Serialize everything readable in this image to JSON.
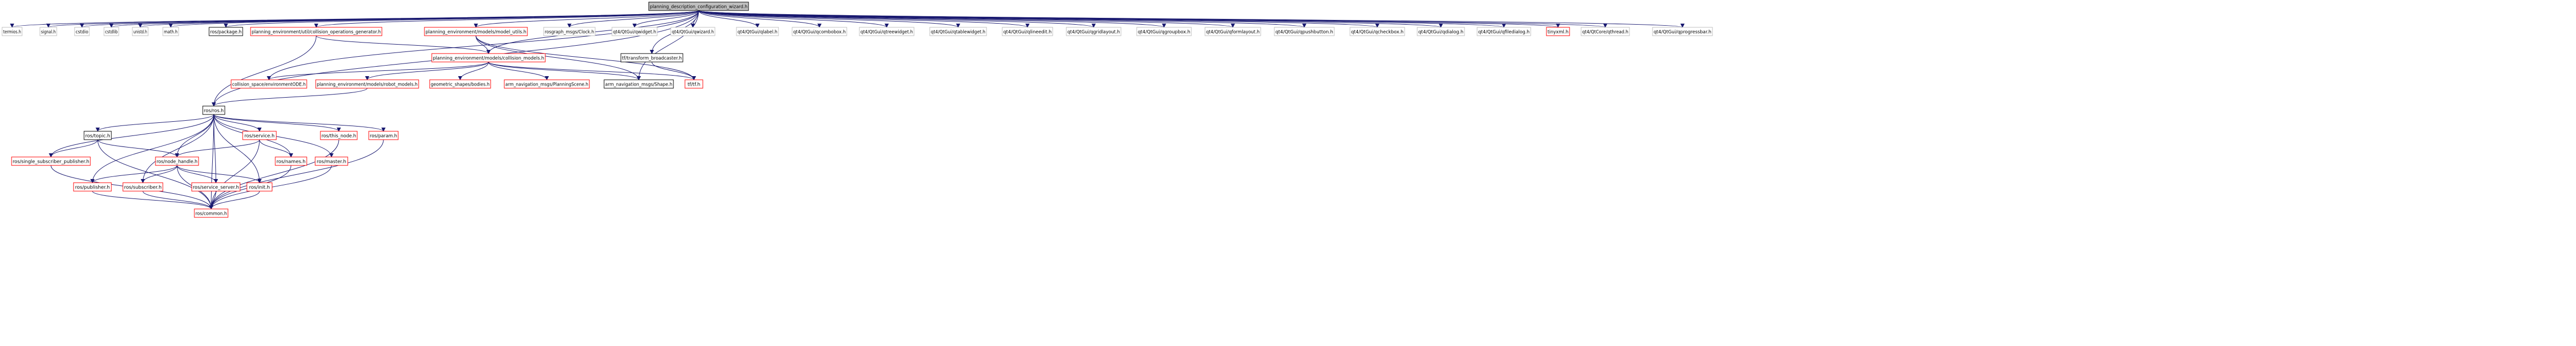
{
  "colors": {
    "background": "#ffffff",
    "root_fill": "#bfbfbf",
    "root_stroke": "#000000",
    "normal_stroke": "#000000",
    "missing_stroke": "#ff0000",
    "external_stroke": "#bfbfbf",
    "edge": "#191970"
  },
  "nodes": [
    {
      "id": "root",
      "label": "planning_description_configuration_wizard.h",
      "kind": "root"
    },
    {
      "id": "termios",
      "label": "termios.h",
      "kind": "external"
    },
    {
      "id": "signal",
      "label": "signal.h",
      "kind": "external"
    },
    {
      "id": "cstdio",
      "label": "cstdio",
      "kind": "external"
    },
    {
      "id": "cstdlib",
      "label": "cstdlib",
      "kind": "external"
    },
    {
      "id": "unistd",
      "label": "unistd.h",
      "kind": "external"
    },
    {
      "id": "math",
      "label": "math.h",
      "kind": "external"
    },
    {
      "id": "ros_package",
      "label": "ros/package.h",
      "kind": "normal"
    },
    {
      "id": "collision_ops",
      "label": "planning_environment/util/collision_operations_generator.h",
      "kind": "missing"
    },
    {
      "id": "model_utils",
      "label": "planning_environment/models/model_utils.h",
      "kind": "missing"
    },
    {
      "id": "clock",
      "label": "rosgraph_msgs/Clock.h",
      "kind": "external"
    },
    {
      "id": "qwidget",
      "label": "qt4/QtGui/qwidget.h",
      "kind": "external"
    },
    {
      "id": "qwizard",
      "label": "qt4/QtGui/qwizard.h",
      "kind": "external"
    },
    {
      "id": "qlabel",
      "label": "qt4/QtGui/qlabel.h",
      "kind": "external"
    },
    {
      "id": "qcombobox",
      "label": "qt4/QtGui/qcombobox.h",
      "kind": "external"
    },
    {
      "id": "qtreewidget",
      "label": "qt4/QtGui/qtreewidget.h",
      "kind": "external"
    },
    {
      "id": "qtablewidget",
      "label": "qt4/QtGui/qtablewidget.h",
      "kind": "external"
    },
    {
      "id": "qlineedit",
      "label": "qt4/QtGui/qlineedit.h",
      "kind": "external"
    },
    {
      "id": "qgridlayout",
      "label": "qt4/QtGui/qgridlayout.h",
      "kind": "external"
    },
    {
      "id": "qgroupbox",
      "label": "qt4/QtGui/qgroupbox.h",
      "kind": "external"
    },
    {
      "id": "qformlayout",
      "label": "qt4/QtGui/qformlayout.h",
      "kind": "external"
    },
    {
      "id": "qpushbutton",
      "label": "qt4/QtGui/qpushbutton.h",
      "kind": "external"
    },
    {
      "id": "qcheckbox",
      "label": "qt4/QtGui/qcheckbox.h",
      "kind": "external"
    },
    {
      "id": "qdialog",
      "label": "qt4/QtGui/qdialog.h",
      "kind": "external"
    },
    {
      "id": "qfiledialog",
      "label": "qt4/QtGui/qfiledialog.h",
      "kind": "external"
    },
    {
      "id": "tinyxml",
      "label": "tinyxml.h",
      "kind": "missing"
    },
    {
      "id": "qthread",
      "label": "qt4/QtCore/qthread.h",
      "kind": "external"
    },
    {
      "id": "qprogressbar",
      "label": "qt4/QtGui/qprogressbar.h",
      "kind": "external"
    },
    {
      "id": "collision_models",
      "label": "planning_environment/models/collision_models.h",
      "kind": "missing"
    },
    {
      "id": "tf_broadcaster",
      "label": "tf/transform_broadcaster.h",
      "kind": "normal"
    },
    {
      "id": "collision_space",
      "label": "collision_space/environmentODE.h",
      "kind": "missing"
    },
    {
      "id": "robot_models",
      "label": "planning_environment/models/robot_models.h",
      "kind": "missing"
    },
    {
      "id": "bodies",
      "label": "geometric_shapes/bodies.h",
      "kind": "missing"
    },
    {
      "id": "planning_scene",
      "label": "arm_navigation_msgs/PlanningScene.h",
      "kind": "missing"
    },
    {
      "id": "shape",
      "label": "arm_navigation_msgs/Shape.h",
      "kind": "normal"
    },
    {
      "id": "tftf",
      "label": "tf/tf.h",
      "kind": "missing"
    },
    {
      "id": "ros",
      "label": "ros/ros.h",
      "kind": "normal"
    },
    {
      "id": "topic",
      "label": "ros/topic.h",
      "kind": "normal"
    },
    {
      "id": "service",
      "label": "ros/service.h",
      "kind": "missing"
    },
    {
      "id": "this_node",
      "label": "ros/this_node.h",
      "kind": "missing"
    },
    {
      "id": "param",
      "label": "ros/param.h",
      "kind": "missing"
    },
    {
      "id": "single_sub",
      "label": "ros/single_subscriber_publisher.h",
      "kind": "missing"
    },
    {
      "id": "node_handle",
      "label": "ros/node_handle.h",
      "kind": "missing"
    },
    {
      "id": "names",
      "label": "ros/names.h",
      "kind": "missing"
    },
    {
      "id": "master",
      "label": "ros/master.h",
      "kind": "missing"
    },
    {
      "id": "publisher",
      "label": "ros/publisher.h",
      "kind": "missing"
    },
    {
      "id": "subscriber",
      "label": "ros/subscriber.h",
      "kind": "missing"
    },
    {
      "id": "service_server",
      "label": "ros/service_server.h",
      "kind": "missing"
    },
    {
      "id": "init",
      "label": "ros/init.h",
      "kind": "missing"
    },
    {
      "id": "common",
      "label": "ros/common.h",
      "kind": "missing"
    }
  ],
  "edges": [
    [
      "root",
      "termios"
    ],
    [
      "root",
      "signal"
    ],
    [
      "root",
      "cstdio"
    ],
    [
      "root",
      "cstdlib"
    ],
    [
      "root",
      "unistd"
    ],
    [
      "root",
      "math"
    ],
    [
      "root",
      "ros_package"
    ],
    [
      "root",
      "collision_ops"
    ],
    [
      "root",
      "model_utils"
    ],
    [
      "root",
      "clock"
    ],
    [
      "root",
      "qwidget"
    ],
    [
      "root",
      "qwizard"
    ],
    [
      "root",
      "qlabel"
    ],
    [
      "root",
      "qcombobox"
    ],
    [
      "root",
      "qtreewidget"
    ],
    [
      "root",
      "qtablewidget"
    ],
    [
      "root",
      "qlineedit"
    ],
    [
      "root",
      "qgridlayout"
    ],
    [
      "root",
      "qgroupbox"
    ],
    [
      "root",
      "qformlayout"
    ],
    [
      "root",
      "qpushbutton"
    ],
    [
      "root",
      "qcheckbox"
    ],
    [
      "root",
      "qdialog"
    ],
    [
      "root",
      "qfiledialog"
    ],
    [
      "root",
      "tinyxml"
    ],
    [
      "root",
      "qthread"
    ],
    [
      "root",
      "qprogressbar"
    ],
    [
      "root",
      "tf_broadcaster"
    ],
    [
      "root",
      "ros"
    ],
    [
      "root",
      "collision_space"
    ],
    [
      "root",
      "shape"
    ],
    [
      "root",
      "collision_models"
    ],
    [
      "collision_ops",
      "collision_models"
    ],
    [
      "collision_ops",
      "ros"
    ],
    [
      "model_utils",
      "collision_models"
    ],
    [
      "model_utils",
      "shape"
    ],
    [
      "model_utils",
      "tftf"
    ],
    [
      "collision_models",
      "collision_space"
    ],
    [
      "collision_models",
      "robot_models"
    ],
    [
      "collision_models",
      "bodies"
    ],
    [
      "collision_models",
      "planning_scene"
    ],
    [
      "collision_models",
      "shape"
    ],
    [
      "collision_models",
      "tftf"
    ],
    [
      "tf_broadcaster",
      "tftf"
    ],
    [
      "robot_models",
      "ros"
    ],
    [
      "ros",
      "topic"
    ],
    [
      "ros",
      "service"
    ],
    [
      "ros",
      "this_node"
    ],
    [
      "ros",
      "param"
    ],
    [
      "ros",
      "single_sub"
    ],
    [
      "ros",
      "node_handle"
    ],
    [
      "ros",
      "names"
    ],
    [
      "ros",
      "master"
    ],
    [
      "ros",
      "publisher"
    ],
    [
      "ros",
      "subscriber"
    ],
    [
      "ros",
      "service_server"
    ],
    [
      "ros",
      "init"
    ],
    [
      "ros",
      "common"
    ],
    [
      "topic",
      "node_handle"
    ],
    [
      "topic",
      "single_sub"
    ],
    [
      "topic",
      "common"
    ],
    [
      "service",
      "node_handle"
    ],
    [
      "service",
      "names"
    ],
    [
      "service",
      "common"
    ],
    [
      "this_node",
      "common"
    ],
    [
      "param",
      "common"
    ],
    [
      "single_sub",
      "common"
    ],
    [
      "node_handle",
      "publisher"
    ],
    [
      "node_handle",
      "subscriber"
    ],
    [
      "node_handle",
      "service_server"
    ],
    [
      "node_handle",
      "init"
    ],
    [
      "node_handle",
      "common"
    ],
    [
      "names",
      "common"
    ],
    [
      "master",
      "common"
    ],
    [
      "publisher",
      "common"
    ],
    [
      "subscriber",
      "common"
    ],
    [
      "service_server",
      "common"
    ],
    [
      "init",
      "common"
    ]
  ]
}
